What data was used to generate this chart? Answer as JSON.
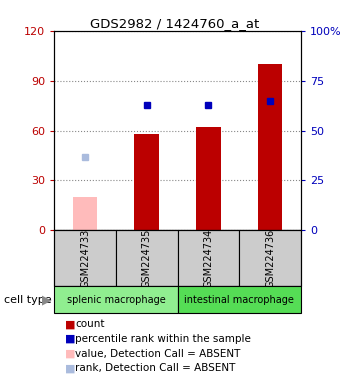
{
  "title": "GDS2982 / 1424760_a_at",
  "samples": [
    "GSM224733",
    "GSM224735",
    "GSM224734",
    "GSM224736"
  ],
  "counts": [
    0,
    58,
    62,
    100
  ],
  "percentile_ranks": [
    0,
    63,
    63,
    65
  ],
  "absent_values": [
    20,
    0,
    0,
    0
  ],
  "absent_ranks": [
    37,
    0,
    0,
    0
  ],
  "cell_types": [
    {
      "label": "splenic macrophage",
      "span": [
        0,
        2
      ],
      "color": "#90EE90"
    },
    {
      "label": "intestinal macrophage",
      "span": [
        2,
        4
      ],
      "color": "#55DD55"
    }
  ],
  "ylim_left": [
    0,
    120
  ],
  "ylim_right": [
    0,
    100
  ],
  "yticks_left": [
    0,
    30,
    60,
    90,
    120
  ],
  "yticks_right": [
    0,
    25,
    50,
    75,
    100
  ],
  "ytick_labels_left": [
    "0",
    "30",
    "60",
    "90",
    "120"
  ],
  "ytick_labels_right": [
    "0",
    "25",
    "50",
    "75",
    "100%"
  ],
  "color_red": "#BB0000",
  "color_blue": "#0000BB",
  "color_pink": "#FFBBBB",
  "color_lightblue": "#AABBDD",
  "color_gray": "#CCCCCC",
  "color_gray_light": "#E0E0E0",
  "bar_width": 0.4,
  "legend_items": [
    {
      "color": "#BB0000",
      "label": "count"
    },
    {
      "color": "#0000BB",
      "label": "percentile rank within the sample"
    },
    {
      "color": "#FFBBBB",
      "label": "value, Detection Call = ABSENT"
    },
    {
      "color": "#AABBDD",
      "label": "rank, Detection Call = ABSENT"
    }
  ]
}
